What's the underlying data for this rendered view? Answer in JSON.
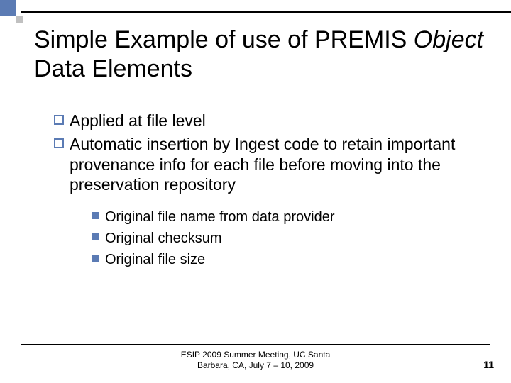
{
  "title": {
    "pre": "Simple Example of use of PREMIS ",
    "italic": "Object",
    "post": " Data Elements",
    "fontsize": 34
  },
  "bullets_l1": [
    {
      "text": "Applied at file level"
    },
    {
      "text": "Automatic insertion by Ingest code to retain important provenance info for each file before moving into the preservation repository"
    }
  ],
  "bullets_l2": [
    {
      "text": "Original file name from data provider"
    },
    {
      "text": "Original checksum"
    },
    {
      "text": "Original file size"
    }
  ],
  "footer": {
    "line1": "ESIP 2009 Summer Meeting, UC Santa",
    "line2": "Barbara, CA, July 7 – 10, 2009"
  },
  "page_number": "11",
  "colors": {
    "accent": "#5b7bb4",
    "deco_small": "#c0c0c0",
    "rule": "#000000",
    "background": "#ffffff",
    "text": "#000000"
  }
}
